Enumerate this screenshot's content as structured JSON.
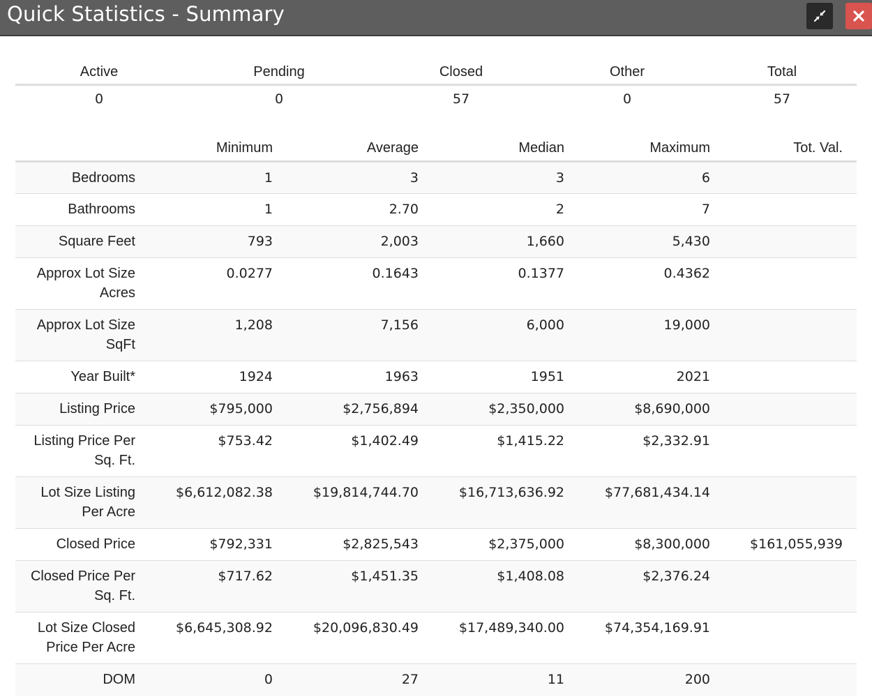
{
  "window": {
    "title": "Quick Statistics - Summary",
    "minimize_icon": "compress-icon",
    "close_icon": "close-icon"
  },
  "summary": {
    "headers": [
      "Active",
      "Pending",
      "Closed",
      "Other",
      "Total"
    ],
    "values": [
      "0",
      "0",
      "57",
      "0",
      "57"
    ]
  },
  "stats": {
    "headers": [
      "",
      "Minimum",
      "Average",
      "Median",
      "Maximum",
      "Tot. Val."
    ],
    "rows": [
      {
        "label": "Bedrooms",
        "min": "1",
        "avg": "3",
        "median": "3",
        "max": "6",
        "total": ""
      },
      {
        "label": "Bathrooms",
        "min": "1",
        "avg": "2.70",
        "median": "2",
        "max": "7",
        "total": ""
      },
      {
        "label": "Square Feet",
        "min": "793",
        "avg": "2,003",
        "median": "1,660",
        "max": "5,430",
        "total": ""
      },
      {
        "label": "Approx Lot Size Acres",
        "min": "0.0277",
        "avg": "0.1643",
        "median": "0.1377",
        "max": "0.4362",
        "total": ""
      },
      {
        "label": "Approx Lot Size SqFt",
        "min": "1,208",
        "avg": "7,156",
        "median": "6,000",
        "max": "19,000",
        "total": ""
      },
      {
        "label": "Year Built*",
        "min": "1924",
        "avg": "1963",
        "median": "1951",
        "max": "2021",
        "total": ""
      },
      {
        "label": "Listing Price",
        "min": "$795,000",
        "avg": "$2,756,894",
        "median": "$2,350,000",
        "max": "$8,690,000",
        "total": ""
      },
      {
        "label": "Listing Price Per Sq. Ft.",
        "min": "$753.42",
        "avg": "$1,402.49",
        "median": "$1,415.22",
        "max": "$2,332.91",
        "total": ""
      },
      {
        "label": "Lot Size Listing Per Acre",
        "min": "$6,612,082.38",
        "avg": "$19,814,744.70",
        "median": "$16,713,636.92",
        "max": "$77,681,434.14",
        "total": ""
      },
      {
        "label": "Closed Price",
        "min": "$792,331",
        "avg": "$2,825,543",
        "median": "$2,375,000",
        "max": "$8,300,000",
        "total": "$161,055,939"
      },
      {
        "label": "Closed Price Per Sq. Ft.",
        "min": "$717.62",
        "avg": "$1,451.35",
        "median": "$1,408.08",
        "max": "$2,376.24",
        "total": ""
      },
      {
        "label": "Lot Size Closed Price Per Acre",
        "min": "$6,645,308.92",
        "avg": "$20,096,830.49",
        "median": "$17,489,340.00",
        "max": "$74,354,169.91",
        "total": ""
      },
      {
        "label": "DOM",
        "min": "0",
        "avg": "27",
        "median": "11",
        "max": "200",
        "total": ""
      }
    ]
  }
}
